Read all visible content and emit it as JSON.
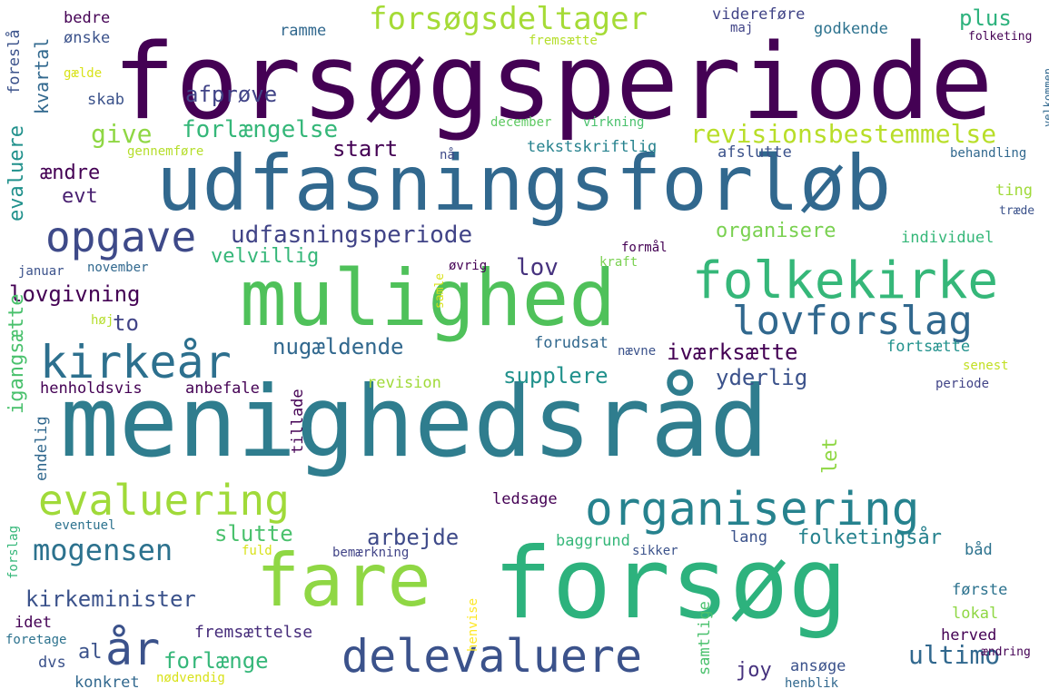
{
  "words": [
    {
      "text": "forsøgsperiode",
      "color": "#440154",
      "rot": 0
    },
    {
      "text": "udfasningsforløb",
      "color": "#31688e",
      "rot": 0
    },
    {
      "text": "menighedsråd",
      "color": "#2f7d8e",
      "rot": 0
    },
    {
      "text": "forsøg",
      "color": "#2db27d",
      "rot": 0
    },
    {
      "text": "mulighed",
      "color": "#4fc15a",
      "rot": 0
    },
    {
      "text": "fare",
      "color": "#8fd744",
      "rot": 0
    },
    {
      "text": "folkekirke",
      "color": "#35b779",
      "rot": 0
    },
    {
      "text": "organisering",
      "color": "#26828e",
      "rot": 0
    },
    {
      "text": "evaluering",
      "color": "#a0da39",
      "rot": 0
    },
    {
      "text": "delevaluere",
      "color": "#3b528b",
      "rot": 0
    },
    {
      "text": "lovforslag",
      "color": "#31688e",
      "rot": 0
    },
    {
      "text": "kirkeår",
      "color": "#2d708e",
      "rot": 0
    },
    {
      "text": "opgave",
      "color": "#3e4a89",
      "rot": 0
    },
    {
      "text": "forsøgsdeltager",
      "color": "#a5db36",
      "rot": 0
    },
    {
      "text": "år",
      "color": "#3b528b",
      "rot": 0
    },
    {
      "text": "udfasningsperiode",
      "color": "#414487",
      "rot": 0
    },
    {
      "text": "mogensen",
      "color": "#2c728e",
      "rot": 0
    },
    {
      "text": "revisionsbestemmelse",
      "color": "#b8de29",
      "rot": 0
    },
    {
      "text": "forlængelse",
      "color": "#35b779",
      "rot": 0
    },
    {
      "text": "kirkeminister",
      "color": "#3b528b",
      "rot": 0
    },
    {
      "text": "lovgivning",
      "color": "#440154",
      "rot": 0
    },
    {
      "text": "forlænge",
      "color": "#35b779",
      "rot": 0
    },
    {
      "text": "ultimo",
      "color": "#31688e",
      "rot": 0
    },
    {
      "text": "give",
      "color": "#8fd744",
      "rot": 0
    },
    {
      "text": "afprøve",
      "color": "#414487",
      "rot": 0
    },
    {
      "text": "plus",
      "color": "#2db27d",
      "rot": 0
    },
    {
      "text": "slutte",
      "color": "#4ac16d",
      "rot": 0
    },
    {
      "text": "arbejde",
      "color": "#3e4a89",
      "rot": 0
    },
    {
      "text": "lov",
      "color": "#46327e",
      "rot": 0
    },
    {
      "text": "supplere",
      "color": "#21918c",
      "rot": 0
    },
    {
      "text": "iværksætte",
      "color": "#440154",
      "rot": 0
    },
    {
      "text": "yderlig",
      "color": "#3b528b",
      "rot": 0
    },
    {
      "text": "nugældende",
      "color": "#31688e",
      "rot": 0
    },
    {
      "text": "start",
      "color": "#440154",
      "rot": 0
    },
    {
      "text": "velvillig",
      "color": "#35b779",
      "rot": 0
    },
    {
      "text": "ændre",
      "color": "#440154",
      "rot": 0
    },
    {
      "text": "evt",
      "color": "#481f70",
      "rot": 0
    },
    {
      "text": "joy",
      "color": "#46327e",
      "rot": 0
    },
    {
      "text": "to",
      "color": "#414487",
      "rot": 0
    },
    {
      "text": "al",
      "color": "#3b528b",
      "rot": 0
    },
    {
      "text": "organisere",
      "color": "#7ad151",
      "rot": 0
    },
    {
      "text": "folketingsår",
      "color": "#26828e",
      "rot": 0
    },
    {
      "text": "fremsættelse",
      "color": "#472d7b",
      "rot": 0
    },
    {
      "text": "bedre",
      "color": "#440154",
      "rot": 0
    },
    {
      "text": "ønske",
      "color": "#3b528b",
      "rot": 0
    },
    {
      "text": "ramme",
      "color": "#31688e",
      "rot": 0
    },
    {
      "text": "videreføre",
      "color": "#414487",
      "rot": 0
    },
    {
      "text": "maj",
      "color": "#414487",
      "rot": 0
    },
    {
      "text": "godkende",
      "color": "#2c728e",
      "rot": 0
    },
    {
      "text": "fremsætte",
      "color": "#b5de2b",
      "rot": 0
    },
    {
      "text": "folketing",
      "color": "#440154",
      "rot": 0
    },
    {
      "text": "skab",
      "color": "#3b528b",
      "rot": 0
    },
    {
      "text": "gælde",
      "color": "#d8e219",
      "rot": 0
    },
    {
      "text": "december",
      "color": "#5ec962",
      "rot": 0
    },
    {
      "text": "virkning",
      "color": "#4ac16d",
      "rot": 0
    },
    {
      "text": "tekstskriftlig",
      "color": "#26828e",
      "rot": 0
    },
    {
      "text": "afslutte",
      "color": "#3b528b",
      "rot": 0
    },
    {
      "text": "gennemføre",
      "color": "#b5de2b",
      "rot": 0
    },
    {
      "text": "nå",
      "color": "#3e4a89",
      "rot": 0
    },
    {
      "text": "behandling",
      "color": "#31688e",
      "rot": 0
    },
    {
      "text": "ting",
      "color": "#a0da39",
      "rot": 0
    },
    {
      "text": "træde",
      "color": "#3b528b",
      "rot": 0
    },
    {
      "text": "individuel",
      "color": "#35b779",
      "rot": 0
    },
    {
      "text": "januar",
      "color": "#3b528b",
      "rot": 0
    },
    {
      "text": "november",
      "color": "#31688e",
      "rot": 0
    },
    {
      "text": "formål",
      "color": "#440154",
      "rot": 0
    },
    {
      "text": "øvrig",
      "color": "#440154",
      "rot": 0
    },
    {
      "text": "kraft",
      "color": "#7ad151",
      "rot": 0
    },
    {
      "text": "høj",
      "color": "#b5de2b",
      "rot": 0
    },
    {
      "text": "forudsat",
      "color": "#31688e",
      "rot": 0
    },
    {
      "text": "nævne",
      "color": "#3b528b",
      "rot": 0
    },
    {
      "text": "fortsætte",
      "color": "#21918c",
      "rot": 0
    },
    {
      "text": "senest",
      "color": "#c2df23",
      "rot": 0
    },
    {
      "text": "henholdsvis",
      "color": "#440154",
      "rot": 0
    },
    {
      "text": "anbefale",
      "color": "#440154",
      "rot": 0
    },
    {
      "text": "revision",
      "color": "#a0da39",
      "rot": 0
    },
    {
      "text": "periode",
      "color": "#414487",
      "rot": 0
    },
    {
      "text": "ledsage",
      "color": "#440154",
      "rot": 0
    },
    {
      "text": "eventuel",
      "color": "#2c728e",
      "rot": 0
    },
    {
      "text": "baggrund",
      "color": "#35b779",
      "rot": 0
    },
    {
      "text": "lang",
      "color": "#3b528b",
      "rot": 0
    },
    {
      "text": "bemærkning",
      "color": "#414487",
      "rot": 0
    },
    {
      "text": "fuld",
      "color": "#d8e219",
      "rot": 0
    },
    {
      "text": "sikker",
      "color": "#3b528b",
      "rot": 0
    },
    {
      "text": "båd",
      "color": "#2c728e",
      "rot": 0
    },
    {
      "text": "idet",
      "color": "#440154",
      "rot": 0
    },
    {
      "text": "første",
      "color": "#2c728e",
      "rot": 0
    },
    {
      "text": "lokal",
      "color": "#8fd744",
      "rot": 0
    },
    {
      "text": "herved",
      "color": "#440154",
      "rot": 0
    },
    {
      "text": "foretage",
      "color": "#2c728e",
      "rot": 0
    },
    {
      "text": "dvs",
      "color": "#3b528b",
      "rot": 0
    },
    {
      "text": "konkret",
      "color": "#31688e",
      "rot": 0
    },
    {
      "text": "nødvendig",
      "color": "#d8e219",
      "rot": 0
    },
    {
      "text": "ansøge",
      "color": "#3b528b",
      "rot": 0
    },
    {
      "text": "henblik",
      "color": "#31688e",
      "rot": 0
    },
    {
      "text": "ændring",
      "color": "#440154",
      "rot": 0
    },
    {
      "text": "foreslå",
      "color": "#3b528b",
      "rot": 0
    },
    {
      "text": "kvartal",
      "color": "#31688e",
      "rot": 0
    },
    {
      "text": "evaluere",
      "color": "#21918c",
      "rot": 0
    },
    {
      "text": "igangsætte",
      "color": "#4ac16d",
      "rot": 0
    },
    {
      "text": "endelig",
      "color": "#31688e",
      "rot": 0
    },
    {
      "text": "forslag",
      "color": "#35b779",
      "rot": 0
    },
    {
      "text": "tillade",
      "color": "#440154",
      "rot": 0
    },
    {
      "text": "let",
      "color": "#8fd744",
      "rot": 0
    },
    {
      "text": "samtlige",
      "color": "#4ac16d",
      "rot": 0
    },
    {
      "text": "henvise",
      "color": "#fde725",
      "rot": 0
    },
    {
      "text": "samle",
      "color": "#d8e219",
      "rot": 0
    },
    {
      "text": "velkommen",
      "color": "#31688e",
      "rot": 0
    }
  ]
}
